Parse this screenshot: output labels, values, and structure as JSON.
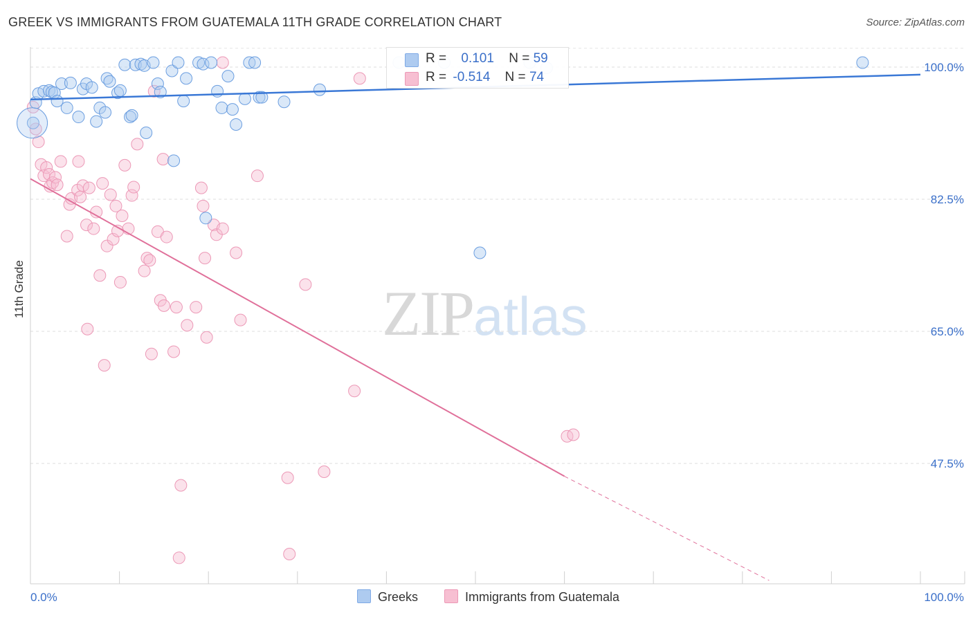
{
  "title": "GREEK VS IMMIGRANTS FROM GUATEMALA 11TH GRADE CORRELATION CHART",
  "source": "Source: ZipAtlas.com",
  "watermark": {
    "zip": "ZIP",
    "atlas": "atlas"
  },
  "colors": {
    "blue": "#3a78d6",
    "blue_fill": "#aecbf0",
    "pink": "#e0709a",
    "pink_fill": "#f7bfd2",
    "axis_text": "#3a6fc9"
  },
  "legend": {
    "rows": [
      {
        "r_label": "R =",
        "r_value": "0.101",
        "n_label": "N =",
        "n_value": "59"
      },
      {
        "r_label": "R =",
        "r_value": "-0.514",
        "n_label": "N =",
        "n_value": "74"
      }
    ]
  },
  "bottom_legend": {
    "series1": "Greeks",
    "series2": "Immigrants from Guatemala"
  },
  "chart_data": {
    "type": "scatter",
    "title": "GREEK VS IMMIGRANTS FROM GUATEMALA 11TH GRADE CORRELATION CHART",
    "xlabel": "",
    "ylabel": "11th Grade",
    "xlim": [
      0,
      100
    ],
    "ylim": [
      32,
      100
    ],
    "x_ticks": [
      "0.0%",
      "100.0%"
    ],
    "y_ticks": [
      {
        "value": 100,
        "label": "100.0%"
      },
      {
        "value": 82.5,
        "label": "82.5%"
      },
      {
        "value": 65,
        "label": "65.0%"
      },
      {
        "value": 47.5,
        "label": "47.5%"
      }
    ],
    "grid": true,
    "series": [
      {
        "name": "Greeks",
        "color": "#3a78d6",
        "trend": [
          [
            0,
            95.7
          ],
          [
            100,
            99.0
          ]
        ],
        "points": [
          [
            0.3,
            92.6
          ],
          [
            0.6,
            95.3
          ],
          [
            0.9,
            96.5
          ],
          [
            1.5,
            96.8
          ],
          [
            2.1,
            96.9
          ],
          [
            2.4,
            96.7
          ],
          [
            2.7,
            96.6
          ],
          [
            3.0,
            95.5
          ],
          [
            3.5,
            97.8
          ],
          [
            4.1,
            94.6
          ],
          [
            4.5,
            97.9
          ],
          [
            5.4,
            93.4
          ],
          [
            5.9,
            97.1
          ],
          [
            6.3,
            97.8
          ],
          [
            6.9,
            97.3
          ],
          [
            7.4,
            92.8
          ],
          [
            7.8,
            94.6
          ],
          [
            8.4,
            94.0
          ],
          [
            8.6,
            98.5
          ],
          [
            8.9,
            98.1
          ],
          [
            9.8,
            96.6
          ],
          [
            10.1,
            96.9
          ],
          [
            10.6,
            100.3
          ],
          [
            11.2,
            93.4
          ],
          [
            11.4,
            93.6
          ],
          [
            11.8,
            100.3
          ],
          [
            12.4,
            100.4
          ],
          [
            12.8,
            100.2
          ],
          [
            13.0,
            91.3
          ],
          [
            13.8,
            100.6
          ],
          [
            14.3,
            97.8
          ],
          [
            14.6,
            96.7
          ],
          [
            15.9,
            99.5
          ],
          [
            16.1,
            87.6
          ],
          [
            16.6,
            100.6
          ],
          [
            17.2,
            95.5
          ],
          [
            17.5,
            98.5
          ],
          [
            18.9,
            100.6
          ],
          [
            19.4,
            100.4
          ],
          [
            20.3,
            100.6
          ],
          [
            19.7,
            80.0
          ],
          [
            21.0,
            96.8
          ],
          [
            21.5,
            94.6
          ],
          [
            22.2,
            98.8
          ],
          [
            22.7,
            94.4
          ],
          [
            23.1,
            92.4
          ],
          [
            24.1,
            95.8
          ],
          [
            24.6,
            100.6
          ],
          [
            25.2,
            100.6
          ],
          [
            25.7,
            96.0
          ],
          [
            26.0,
            96.0
          ],
          [
            28.5,
            95.4
          ],
          [
            32.5,
            97.0
          ],
          [
            41.4,
            100.6
          ],
          [
            46.5,
            100.6
          ],
          [
            50.5,
            75.4
          ],
          [
            56.1,
            100.6
          ],
          [
            58.0,
            99.9
          ],
          [
            93.5,
            100.6
          ]
        ]
      },
      {
        "name": "Immigrants from Guatemala",
        "color": "#e0709a",
        "trend": [
          [
            0,
            85.2
          ],
          [
            60,
            45.8
          ]
        ],
        "trend_dashed": [
          [
            60,
            45.8
          ],
          [
            83,
            32.0
          ]
        ],
        "points": [
          [
            0.3,
            94.7
          ],
          [
            0.6,
            91.8
          ],
          [
            0.9,
            90.1
          ],
          [
            1.2,
            87.1
          ],
          [
            1.5,
            85.6
          ],
          [
            1.8,
            86.7
          ],
          [
            2.1,
            85.8
          ],
          [
            2.2,
            84.2
          ],
          [
            2.5,
            84.7
          ],
          [
            2.8,
            85.4
          ],
          [
            3.0,
            84.4
          ],
          [
            3.4,
            87.5
          ],
          [
            4.1,
            77.6
          ],
          [
            4.4,
            81.8
          ],
          [
            4.6,
            82.6
          ],
          [
            5.3,
            83.7
          ],
          [
            5.4,
            87.5
          ],
          [
            5.6,
            82.8
          ],
          [
            5.9,
            84.3
          ],
          [
            6.3,
            79.1
          ],
          [
            6.4,
            65.3
          ],
          [
            6.6,
            84.0
          ],
          [
            7.1,
            78.6
          ],
          [
            7.4,
            80.8
          ],
          [
            7.8,
            72.4
          ],
          [
            8.1,
            84.6
          ],
          [
            8.3,
            60.5
          ],
          [
            8.6,
            76.3
          ],
          [
            9.0,
            83.1
          ],
          [
            9.3,
            77.2
          ],
          [
            9.6,
            81.6
          ],
          [
            9.8,
            78.3
          ],
          [
            10.1,
            71.5
          ],
          [
            10.3,
            80.3
          ],
          [
            10.6,
            87.0
          ],
          [
            11.0,
            78.6
          ],
          [
            11.4,
            83.0
          ],
          [
            11.6,
            84.1
          ],
          [
            12.0,
            89.8
          ],
          [
            12.8,
            73.0
          ],
          [
            13.1,
            74.7
          ],
          [
            13.4,
            74.4
          ],
          [
            13.6,
            62.0
          ],
          [
            13.9,
            96.8
          ],
          [
            14.3,
            78.2
          ],
          [
            14.6,
            69.1
          ],
          [
            14.9,
            87.8
          ],
          [
            15.0,
            68.4
          ],
          [
            15.3,
            77.5
          ],
          [
            16.1,
            62.3
          ],
          [
            16.4,
            68.2
          ],
          [
            16.7,
            35.0
          ],
          [
            16.9,
            44.6
          ],
          [
            17.6,
            65.8
          ],
          [
            18.6,
            68.2
          ],
          [
            19.2,
            84.0
          ],
          [
            19.4,
            81.6
          ],
          [
            19.6,
            74.7
          ],
          [
            19.8,
            64.2
          ],
          [
            20.6,
            79.1
          ],
          [
            20.9,
            77.8
          ],
          [
            21.6,
            78.6
          ],
          [
            21.6,
            100.6
          ],
          [
            23.1,
            75.4
          ],
          [
            23.6,
            66.5
          ],
          [
            25.5,
            85.6
          ],
          [
            28.9,
            45.6
          ],
          [
            29.1,
            35.5
          ],
          [
            30.9,
            71.2
          ],
          [
            33.0,
            46.4
          ],
          [
            36.4,
            57.1
          ],
          [
            37.0,
            98.5
          ],
          [
            60.3,
            51.1
          ],
          [
            61.0,
            51.3
          ]
        ]
      }
    ]
  }
}
